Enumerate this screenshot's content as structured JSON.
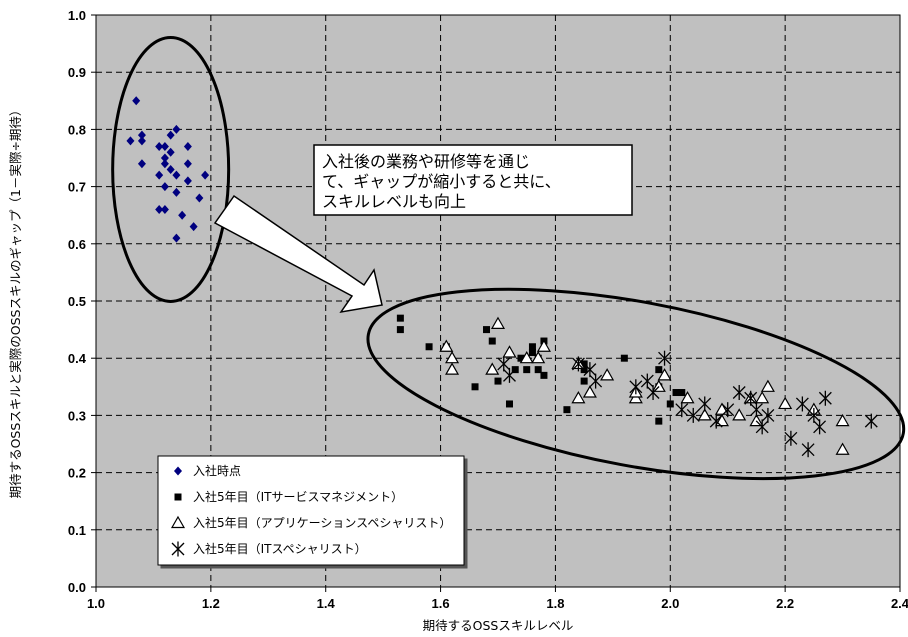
{
  "chart_data": {
    "type": "scatter",
    "title": "",
    "xlabel": "期待するOSSスキルレベル",
    "ylabel": "期待するOSSスキルと実際のOSSスキルのギャップ（1－実際÷期待）",
    "xlim": [
      1.0,
      2.4
    ],
    "ylim": [
      0.0,
      1.0
    ],
    "x_ticks": [
      "1.0",
      "1.2",
      "1.4",
      "1.6",
      "1.8",
      "2.0",
      "2.2",
      "2.4"
    ],
    "y_ticks": [
      "0.0",
      "0.1",
      "0.2",
      "0.3",
      "0.4",
      "0.5",
      "0.6",
      "0.7",
      "0.8",
      "0.9",
      "1.0"
    ],
    "grid": "dashed",
    "plot_background": "#c0c0c0",
    "legend_position": "bottom-left",
    "series": [
      {
        "name": "入社時点",
        "marker": "diamond",
        "color": "#00007f",
        "points": [
          [
            1.07,
            0.85
          ],
          [
            1.06,
            0.78
          ],
          [
            1.08,
            0.79
          ],
          [
            1.08,
            0.78
          ],
          [
            1.08,
            0.74
          ],
          [
            1.11,
            0.77
          ],
          [
            1.12,
            0.77
          ],
          [
            1.12,
            0.75
          ],
          [
            1.12,
            0.74
          ],
          [
            1.13,
            0.76
          ],
          [
            1.11,
            0.72
          ],
          [
            1.13,
            0.79
          ],
          [
            1.14,
            0.8
          ],
          [
            1.13,
            0.73
          ],
          [
            1.14,
            0.72
          ],
          [
            1.16,
            0.77
          ],
          [
            1.16,
            0.74
          ],
          [
            1.12,
            0.7
          ],
          [
            1.16,
            0.71
          ],
          [
            1.14,
            0.69
          ],
          [
            1.19,
            0.72
          ],
          [
            1.18,
            0.68
          ],
          [
            1.11,
            0.66
          ],
          [
            1.12,
            0.66
          ],
          [
            1.15,
            0.65
          ],
          [
            1.17,
            0.63
          ],
          [
            1.14,
            0.61
          ]
        ]
      },
      {
        "name": "入社5年目（ITサービスマネジメント）",
        "marker": "square",
        "color": "#000000",
        "points": [
          [
            1.53,
            0.47
          ],
          [
            1.53,
            0.45
          ],
          [
            1.58,
            0.42
          ],
          [
            1.61,
            0.42
          ],
          [
            1.68,
            0.45
          ],
          [
            1.69,
            0.43
          ],
          [
            1.73,
            0.38
          ],
          [
            1.76,
            0.41
          ],
          [
            1.76,
            0.42
          ],
          [
            1.77,
            0.4
          ],
          [
            1.78,
            0.43
          ],
          [
            1.77,
            0.38
          ],
          [
            1.78,
            0.37
          ],
          [
            1.75,
            0.38
          ],
          [
            1.74,
            0.4
          ],
          [
            1.7,
            0.36
          ],
          [
            1.66,
            0.35
          ],
          [
            1.72,
            0.32
          ],
          [
            1.82,
            0.31
          ],
          [
            1.85,
            0.39
          ],
          [
            1.85,
            0.38
          ],
          [
            1.85,
            0.36
          ],
          [
            1.92,
            0.4
          ],
          [
            1.98,
            0.38
          ],
          [
            1.98,
            0.35
          ],
          [
            1.98,
            0.29
          ],
          [
            2.0,
            0.32
          ],
          [
            2.01,
            0.34
          ],
          [
            2.02,
            0.34
          ]
        ]
      },
      {
        "name": "入社5年目（アプリケーションスペシャリスト）",
        "marker": "triangle",
        "color": "#000000",
        "points": [
          [
            1.61,
            0.42
          ],
          [
            1.62,
            0.4
          ],
          [
            1.62,
            0.38
          ],
          [
            1.7,
            0.46
          ],
          [
            1.69,
            0.38
          ],
          [
            1.72,
            0.41
          ],
          [
            1.75,
            0.4
          ],
          [
            1.78,
            0.42
          ],
          [
            1.77,
            0.4
          ],
          [
            1.84,
            0.39
          ],
          [
            1.84,
            0.33
          ],
          [
            1.86,
            0.34
          ],
          [
            1.89,
            0.37
          ],
          [
            1.94,
            0.33
          ],
          [
            1.94,
            0.34
          ],
          [
            1.98,
            0.35
          ],
          [
            1.99,
            0.37
          ],
          [
            2.03,
            0.33
          ],
          [
            2.06,
            0.3
          ],
          [
            2.09,
            0.29
          ],
          [
            2.09,
            0.31
          ],
          [
            2.12,
            0.3
          ],
          [
            2.14,
            0.33
          ],
          [
            2.16,
            0.33
          ],
          [
            2.17,
            0.35
          ],
          [
            2.15,
            0.29
          ],
          [
            2.2,
            0.32
          ],
          [
            2.25,
            0.31
          ],
          [
            2.3,
            0.29
          ],
          [
            2.3,
            0.24
          ]
        ]
      },
      {
        "name": "入社5年目（ITスペシャリスト）",
        "marker": "asterisk",
        "color": "#000000",
        "points": [
          [
            1.71,
            0.39
          ],
          [
            1.72,
            0.37
          ],
          [
            1.84,
            0.39
          ],
          [
            1.86,
            0.38
          ],
          [
            1.87,
            0.36
          ],
          [
            1.94,
            0.35
          ],
          [
            1.96,
            0.36
          ],
          [
            1.97,
            0.34
          ],
          [
            1.99,
            0.4
          ],
          [
            2.02,
            0.31
          ],
          [
            2.04,
            0.3
          ],
          [
            2.06,
            0.32
          ],
          [
            2.08,
            0.29
          ],
          [
            2.1,
            0.31
          ],
          [
            2.12,
            0.34
          ],
          [
            2.14,
            0.33
          ],
          [
            2.15,
            0.31
          ],
          [
            2.16,
            0.28
          ],
          [
            2.17,
            0.3
          ],
          [
            2.21,
            0.26
          ],
          [
            2.23,
            0.32
          ],
          [
            2.25,
            0.3
          ],
          [
            2.24,
            0.24
          ],
          [
            2.26,
            0.28
          ],
          [
            2.27,
            0.33
          ],
          [
            2.35,
            0.29
          ]
        ]
      }
    ],
    "annotation": {
      "text_lines": [
        "入社後の業務や研修等を通じ",
        "て、ギャップが縮小すると共に、",
        "スキルレベルも向上"
      ]
    }
  }
}
